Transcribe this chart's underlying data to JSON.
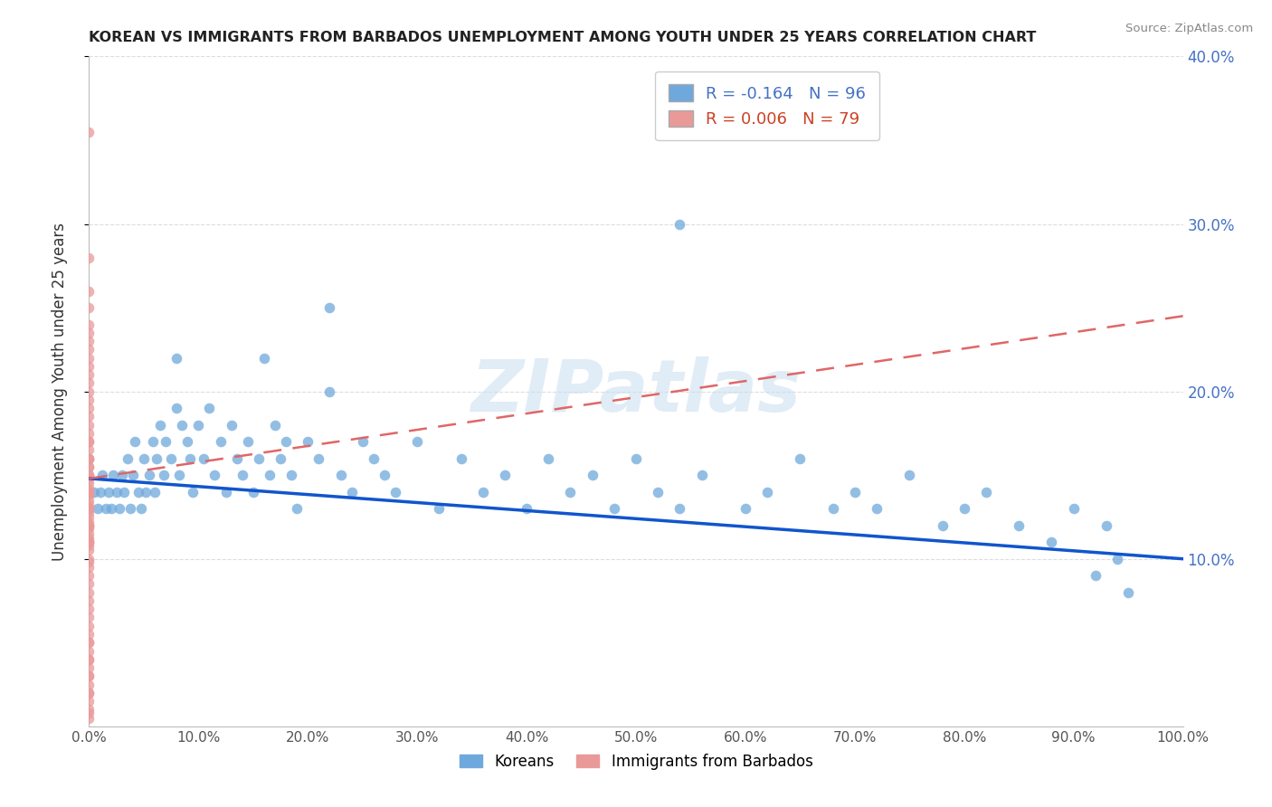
{
  "title": "KOREAN VS IMMIGRANTS FROM BARBADOS UNEMPLOYMENT AMONG YOUTH UNDER 25 YEARS CORRELATION CHART",
  "source": "Source: ZipAtlas.com",
  "ylabel": "Unemployment Among Youth under 25 years",
  "xlim": [
    0,
    1.0
  ],
  "ylim": [
    0,
    0.4
  ],
  "xticklabels": [
    "0.0%",
    "10.0%",
    "20.0%",
    "30.0%",
    "40.0%",
    "50.0%",
    "60.0%",
    "70.0%",
    "80.0%",
    "90.0%",
    "100.0%"
  ],
  "yticks_right": [
    0.1,
    0.2,
    0.3,
    0.4
  ],
  "yticklabels_right": [
    "10.0%",
    "20.0%",
    "30.0%",
    "40.0%"
  ],
  "legend_r_korean": "-0.164",
  "legend_n_korean": "96",
  "legend_r_barbados": "0.006",
  "legend_n_barbados": "79",
  "korean_color": "#6fa8dc",
  "barbados_color": "#ea9999",
  "korean_line_color": "#1155cc",
  "barbados_line_color": "#e06666",
  "watermark": "ZIPatlas",
  "korean_x": [
    0.005,
    0.008,
    0.01,
    0.012,
    0.015,
    0.018,
    0.02,
    0.022,
    0.025,
    0.028,
    0.03,
    0.032,
    0.035,
    0.038,
    0.04,
    0.042,
    0.045,
    0.048,
    0.05,
    0.052,
    0.055,
    0.058,
    0.06,
    0.062,
    0.065,
    0.068,
    0.07,
    0.075,
    0.08,
    0.082,
    0.085,
    0.09,
    0.092,
    0.095,
    0.1,
    0.105,
    0.11,
    0.115,
    0.12,
    0.125,
    0.13,
    0.135,
    0.14,
    0.145,
    0.15,
    0.155,
    0.16,
    0.165,
    0.17,
    0.175,
    0.18,
    0.185,
    0.19,
    0.2,
    0.21,
    0.22,
    0.23,
    0.24,
    0.25,
    0.26,
    0.27,
    0.28,
    0.3,
    0.32,
    0.34,
    0.36,
    0.38,
    0.4,
    0.42,
    0.44,
    0.46,
    0.48,
    0.5,
    0.52,
    0.54,
    0.56,
    0.6,
    0.62,
    0.65,
    0.68,
    0.7,
    0.72,
    0.75,
    0.78,
    0.8,
    0.82,
    0.85,
    0.88,
    0.9,
    0.92,
    0.93,
    0.94,
    0.95,
    0.54,
    0.22,
    0.08
  ],
  "korean_y": [
    0.14,
    0.13,
    0.14,
    0.15,
    0.13,
    0.14,
    0.13,
    0.15,
    0.14,
    0.13,
    0.15,
    0.14,
    0.16,
    0.13,
    0.15,
    0.17,
    0.14,
    0.13,
    0.16,
    0.14,
    0.15,
    0.17,
    0.14,
    0.16,
    0.18,
    0.15,
    0.17,
    0.16,
    0.19,
    0.15,
    0.18,
    0.17,
    0.16,
    0.14,
    0.18,
    0.16,
    0.19,
    0.15,
    0.17,
    0.14,
    0.18,
    0.16,
    0.15,
    0.17,
    0.14,
    0.16,
    0.22,
    0.15,
    0.18,
    0.16,
    0.17,
    0.15,
    0.13,
    0.17,
    0.16,
    0.2,
    0.15,
    0.14,
    0.17,
    0.16,
    0.15,
    0.14,
    0.17,
    0.13,
    0.16,
    0.14,
    0.15,
    0.13,
    0.16,
    0.14,
    0.15,
    0.13,
    0.16,
    0.14,
    0.13,
    0.15,
    0.13,
    0.14,
    0.16,
    0.13,
    0.14,
    0.13,
    0.15,
    0.12,
    0.13,
    0.14,
    0.12,
    0.11,
    0.13,
    0.09,
    0.12,
    0.1,
    0.08,
    0.3,
    0.25,
    0.22
  ],
  "barbados_x": [
    0.0,
    0.0,
    0.0,
    0.0,
    0.0,
    0.0,
    0.0,
    0.0,
    0.0,
    0.0,
    0.0,
    0.0,
    0.0,
    0.0,
    0.0,
    0.0,
    0.0,
    0.0,
    0.0,
    0.0,
    0.0,
    0.0,
    0.0,
    0.0,
    0.0,
    0.0,
    0.0,
    0.0,
    0.0,
    0.0,
    0.0,
    0.0,
    0.0,
    0.0,
    0.0,
    0.0,
    0.0,
    0.0,
    0.0,
    0.0,
    0.0,
    0.0,
    0.0,
    0.0,
    0.0,
    0.0,
    0.0,
    0.0,
    0.0,
    0.0,
    0.0,
    0.0,
    0.0,
    0.0,
    0.0,
    0.0,
    0.0,
    0.0,
    0.0,
    0.0,
    0.0,
    0.0,
    0.0,
    0.0,
    0.0,
    0.0,
    0.0,
    0.0,
    0.0,
    0.0,
    0.0,
    0.0,
    0.0,
    0.0,
    0.0,
    0.0,
    0.0,
    0.0,
    0.0
  ],
  "barbados_y": [
    0.355,
    0.28,
    0.26,
    0.25,
    0.24,
    0.235,
    0.23,
    0.225,
    0.22,
    0.215,
    0.21,
    0.205,
    0.2,
    0.195,
    0.19,
    0.185,
    0.18,
    0.175,
    0.17,
    0.165,
    0.16,
    0.155,
    0.15,
    0.148,
    0.145,
    0.142,
    0.14,
    0.138,
    0.135,
    0.132,
    0.13,
    0.128,
    0.125,
    0.122,
    0.12,
    0.118,
    0.115,
    0.112,
    0.11,
    0.108,
    0.105,
    0.1,
    0.098,
    0.095,
    0.09,
    0.085,
    0.08,
    0.075,
    0.07,
    0.065,
    0.06,
    0.055,
    0.05,
    0.045,
    0.04,
    0.035,
    0.03,
    0.025,
    0.02,
    0.015,
    0.01,
    0.008,
    0.005,
    0.155,
    0.14,
    0.12,
    0.16,
    0.13,
    0.11,
    0.17,
    0.15,
    0.12,
    0.16,
    0.14,
    0.11,
    0.05,
    0.04,
    0.03,
    0.02
  ],
  "korean_trend": [
    0.148,
    0.1
  ],
  "barbados_trend": [
    0.148,
    0.245
  ]
}
